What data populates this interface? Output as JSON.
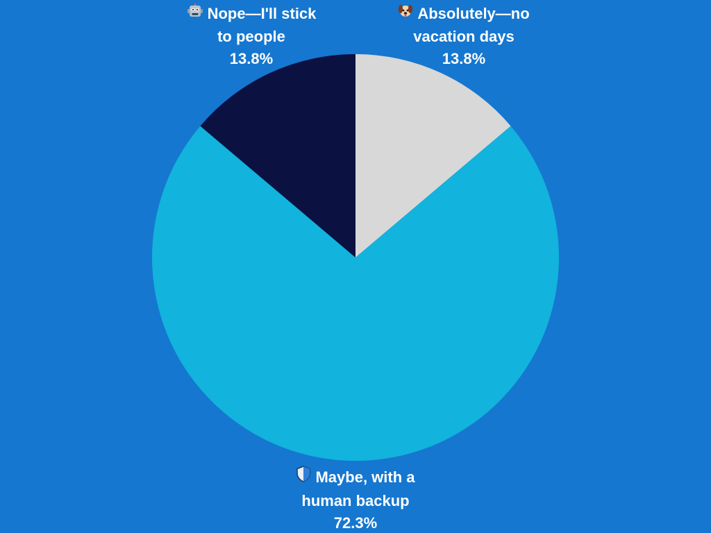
{
  "colors": {
    "background": "#1577d0",
    "label_text": "#ffffff"
  },
  "chart_data": {
    "type": "pie",
    "start_angle_deg": 0,
    "direction": "clockwise",
    "slices": [
      {
        "label_lines": [
          "Absolutely—no",
          "vacation days"
        ],
        "value": 13.8,
        "value_label": "13.8%",
        "color": "#d8d8d8",
        "icon": "dog-face-icon"
      },
      {
        "label_lines": [
          "Maybe, with a",
          "human backup"
        ],
        "value": 72.3,
        "value_label": "72.3%",
        "color": "#12b3dc",
        "icon": "shield-icon"
      },
      {
        "label_lines": [
          "Nope—I'll stick",
          "to people"
        ],
        "value": 13.8,
        "value_label": "13.8%",
        "color": "#0b1140",
        "icon": "robot-face-icon"
      }
    ]
  }
}
